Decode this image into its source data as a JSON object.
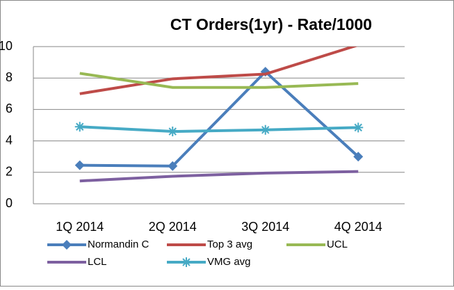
{
  "chart_data": {
    "type": "line",
    "title": "CT Orders(1yr)  - Rate/1000",
    "categories": [
      "1Q 2014",
      "2Q 2014",
      "3Q 2014",
      "4Q 2014"
    ],
    "series": [
      {
        "name": "Normandin C",
        "color": "#4a7ebb",
        "marker": "diamond",
        "values": [
          2.45,
          2.4,
          8.4,
          3.0
        ]
      },
      {
        "name": "Top 3 avg",
        "color": "#be4b48",
        "marker": "none",
        "values": [
          7.0,
          7.95,
          8.25,
          10.1
        ]
      },
      {
        "name": "UCL",
        "color": "#98b954",
        "marker": "none",
        "values": [
          8.3,
          7.4,
          7.4,
          7.65
        ]
      },
      {
        "name": "LCL",
        "color": "#7d60a0",
        "marker": "none",
        "values": [
          1.45,
          1.75,
          1.95,
          2.05
        ]
      },
      {
        "name": "VMG avg",
        "color": "#46aac5",
        "marker": "star",
        "values": [
          4.9,
          4.6,
          4.7,
          4.85
        ]
      }
    ],
    "ylim": [
      0,
      10
    ],
    "yticks": [
      0,
      2,
      4,
      6,
      8,
      10
    ],
    "grid": true,
    "legend": "bottom"
  }
}
